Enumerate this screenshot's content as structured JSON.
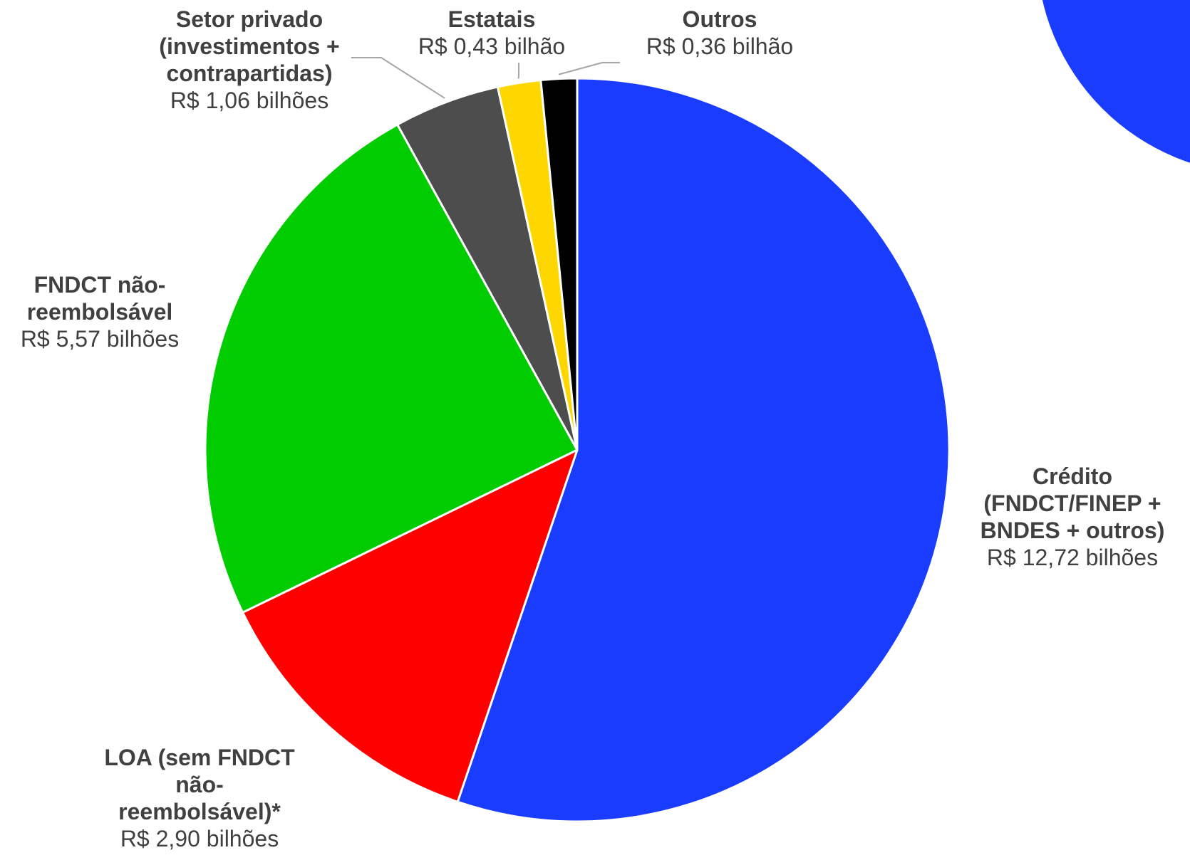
{
  "chart_data": {
    "type": "pie",
    "title": "",
    "slices": [
      {
        "name": "Crédito (FNDCT/FINEP + BNDES + outros)",
        "name_lines": [
          "Crédito",
          "(FNDCT/FINEP +",
          "BNDES + outros)"
        ],
        "value": 12.72,
        "value_label": "R$ 12,72 bilhões",
        "color": "#1a3cff"
      },
      {
        "name": "LOA (sem FNDCT não-reembolsável)*",
        "name_lines": [
          "LOA (sem FNDCT",
          "não-",
          "reembolsável)*"
        ],
        "value": 2.9,
        "value_label": "R$ 2,90 bilhões",
        "color": "#ff0000"
      },
      {
        "name": "FNDCT não-reembolsável",
        "name_lines": [
          "FNDCT não-",
          "reembolsável"
        ],
        "value": 5.57,
        "value_label": "R$ 5,57 bilhões",
        "color": "#00cc00"
      },
      {
        "name": "Setor privado (investimentos + contrapartidas)",
        "name_lines": [
          "Setor privado",
          "(investimentos +",
          "contrapartidas)"
        ],
        "value": 1.06,
        "value_label": "R$ 1,06 bilhões",
        "color": "#4d4d4d"
      },
      {
        "name": "Estatais",
        "name_lines": [
          "Estatais"
        ],
        "value": 0.43,
        "value_label": "R$ 0,43 bilhão",
        "color": "#ffd700"
      },
      {
        "name": "Outros",
        "name_lines": [
          "Outros"
        ],
        "value": 0.36,
        "value_label": "R$ 0,36 bilhão",
        "color": "#000000"
      }
    ],
    "start_direction": "top",
    "direction": "clockwise",
    "legend": "none"
  },
  "decoration": {
    "accent_color": "#1a3cff"
  }
}
